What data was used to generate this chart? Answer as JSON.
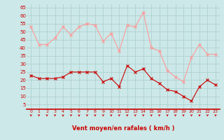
{
  "hours": [
    0,
    1,
    2,
    3,
    4,
    5,
    6,
    7,
    8,
    9,
    10,
    11,
    12,
    13,
    14,
    15,
    16,
    17,
    18,
    19,
    20,
    21,
    22,
    23
  ],
  "wind_avg": [
    23,
    21,
    21,
    21,
    22,
    25,
    25,
    25,
    25,
    19,
    21,
    16,
    29,
    25,
    27,
    21,
    18,
    14,
    13,
    10,
    7,
    16,
    20,
    17
  ],
  "wind_gust": [
    53,
    42,
    42,
    46,
    53,
    48,
    53,
    55,
    54,
    44,
    49,
    38,
    54,
    53,
    62,
    40,
    38,
    26,
    22,
    19,
    34,
    42,
    36,
    36
  ],
  "wind_dir": [
    2,
    2,
    2,
    2,
    4,
    2,
    4,
    2,
    2,
    2,
    2,
    2,
    2,
    2,
    2,
    2,
    2,
    2,
    2,
    2,
    2,
    2,
    2,
    2
  ],
  "xlabel": "Vent moyen/en rafales ( km/h )",
  "yticks": [
    5,
    10,
    15,
    20,
    25,
    30,
    35,
    40,
    45,
    50,
    55,
    60,
    65
  ],
  "ylim": [
    2,
    67
  ],
  "xlim": [
    -0.5,
    23.5
  ],
  "bg_color": "#cce8e8",
  "grid_color": "#aacccc",
  "avg_color": "#cc0000",
  "gust_color": "#ff9999",
  "xlabel_color": "#cc0000",
  "tick_color": "#cc0000",
  "spine_color": "#cc0000"
}
